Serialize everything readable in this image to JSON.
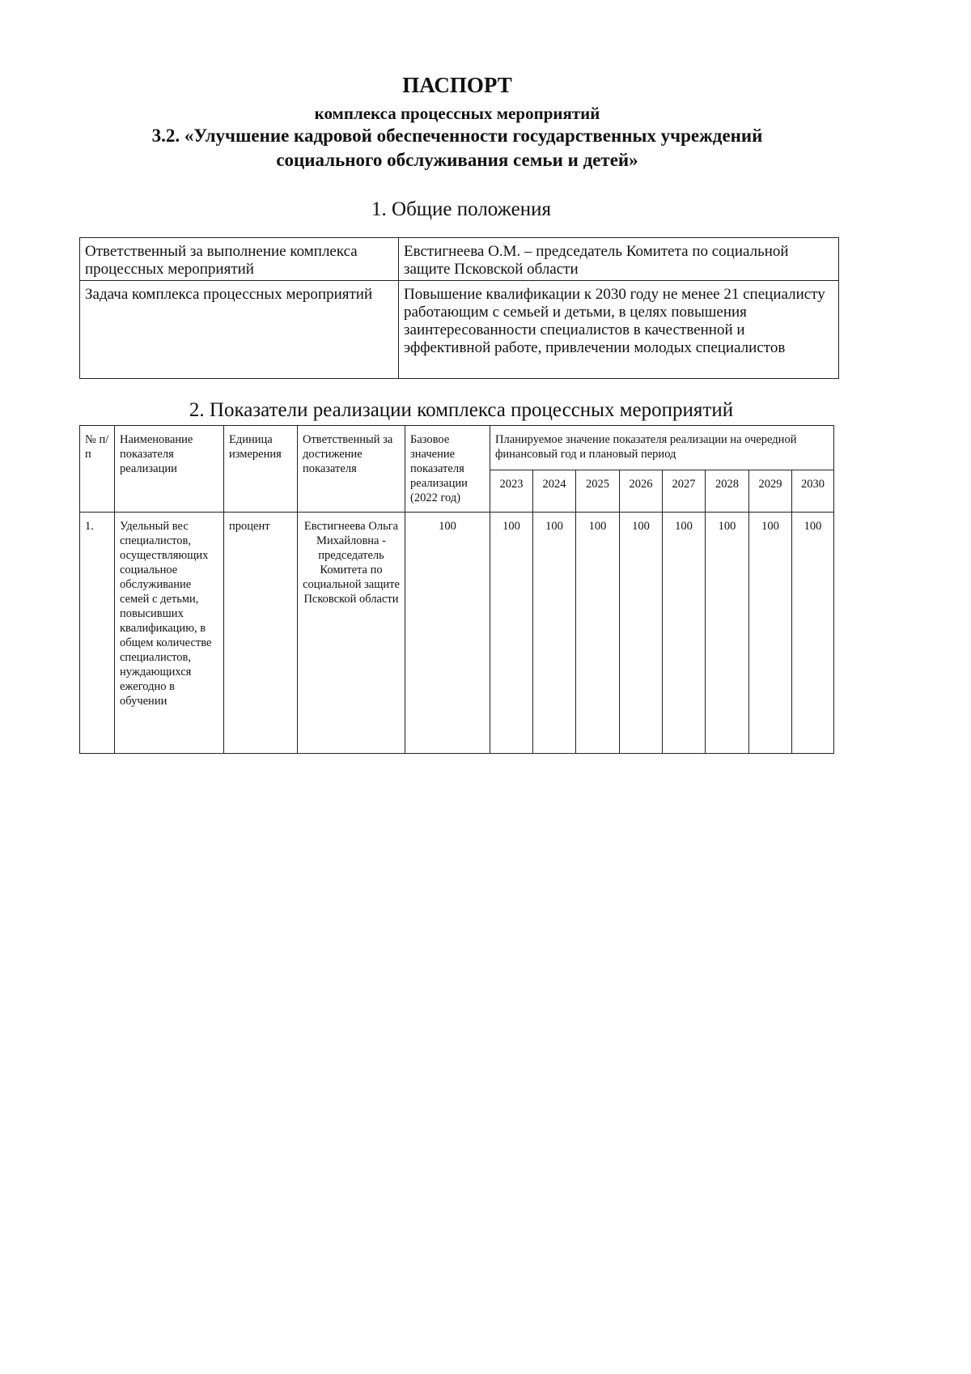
{
  "header": {
    "title": "ПАСПОРТ",
    "subtitle": "комплекса процессных мероприятий",
    "name_line1": "3.2. «Улучшение кадровой обеспеченности государственных учреждений",
    "name_line2": "социального обслуживания семьи и детей»"
  },
  "section1": {
    "heading": "1. Общие положения",
    "rows": [
      {
        "label": "Ответственный за выполнение комплекса процессных мероприятий",
        "value": "Евстигнеева О.М. – председатель Комитета по социальной защите Псковской области"
      },
      {
        "label": "Задача комплекса процессных мероприятий",
        "value": "Повышение квалификации к 2030 году не менее 21 специалисту работающим с семьей и детьми, в целях повышения заинтересованности специалистов в качественной и эффективной работе, привлечении молодых специалистов"
      }
    ]
  },
  "section2": {
    "heading": "2. Показатели реализации комплекса процессных мероприятий",
    "columns": {
      "num": "№ п/п",
      "name": "Наименование показателя реализации",
      "unit": "Единица измерения",
      "responsible": "Ответственный за достижение показателя",
      "base": "Базовое значение показателя реализации (2022 год)",
      "planned": "Планируемое значение показателя реализации на очередной финансовый год и плановый период",
      "years": [
        "2023",
        "2024",
        "2025",
        "2026",
        "2027",
        "2028",
        "2029",
        "2030"
      ]
    },
    "rows": [
      {
        "num": "1.",
        "name": "Удельный вес специалистов, осуществляющих социальное обслуживание семей с детьми, повысивших квалификацию, в общем количестве специалистов, нуждающихся ежегодно в обучении",
        "unit": "процент",
        "responsible": "Евстигнеева Ольга Михайловна - председатель Комитета по социальной защите Псковской области",
        "base": "100",
        "values": [
          "100",
          "100",
          "100",
          "100",
          "100",
          "100",
          "100",
          "100"
        ]
      }
    ]
  }
}
